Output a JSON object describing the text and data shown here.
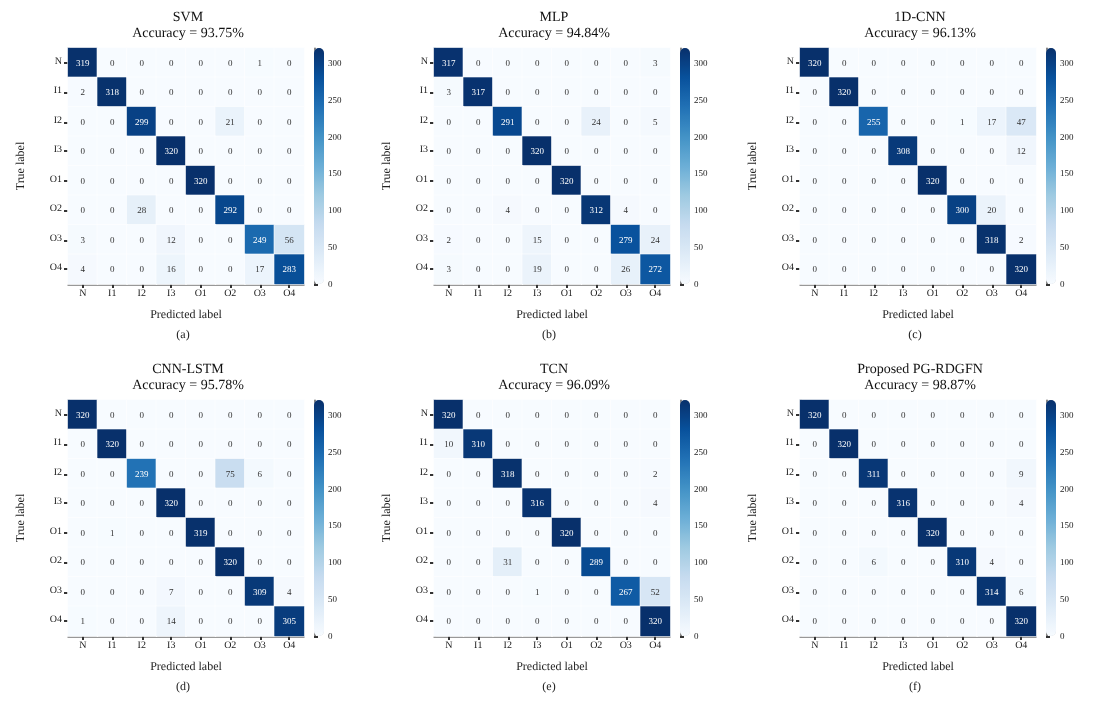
{
  "chart_data": [
    {
      "type": "heatmap",
      "title": "SVM",
      "subtitle": "Accuracy = 93.75%",
      "xlabel": "Predicted label",
      "ylabel": "True label",
      "annotations": [
        "(a)"
      ],
      "data_labels": true,
      "clim": [
        0,
        320
      ],
      "cticks": [
        0,
        50,
        100,
        150,
        200,
        250,
        300
      ],
      "categories": [
        "N",
        "I1",
        "I2",
        "I3",
        "O1",
        "O2",
        "O3",
        "O4"
      ],
      "y_categories": [
        "N",
        "I1",
        "I2",
        "I3",
        "O1",
        "O2",
        "O3",
        "O4"
      ],
      "cells": [
        [
          319,
          0,
          0,
          0,
          0,
          0,
          1,
          0
        ],
        [
          2,
          318,
          0,
          0,
          0,
          0,
          0,
          0
        ],
        [
          0,
          0,
          299,
          0,
          0,
          21,
          0,
          0
        ],
        [
          0,
          0,
          0,
          320,
          0,
          0,
          0,
          0
        ],
        [
          0,
          0,
          0,
          0,
          320,
          0,
          0,
          0
        ],
        [
          0,
          0,
          28,
          0,
          0,
          292,
          0,
          0
        ],
        [
          3,
          0,
          0,
          12,
          0,
          0,
          249,
          56
        ],
        [
          4,
          0,
          0,
          16,
          0,
          0,
          17,
          283
        ]
      ]
    },
    {
      "type": "heatmap",
      "title": "MLP",
      "subtitle": "Accuracy = 94.84%",
      "xlabel": "Predicted label",
      "ylabel": "True label",
      "annotations": [
        "(b)"
      ],
      "data_labels": true,
      "clim": [
        0,
        320
      ],
      "cticks": [
        0,
        50,
        100,
        150,
        200,
        250,
        300
      ],
      "categories": [
        "N",
        "I1",
        "I2",
        "I3",
        "O1",
        "O2",
        "O3",
        "O4"
      ],
      "y_categories": [
        "N",
        "I1",
        "I2",
        "I3",
        "O1",
        "O2",
        "O3",
        "O4"
      ],
      "cells": [
        [
          317,
          0,
          0,
          0,
          0,
          0,
          0,
          3
        ],
        [
          3,
          317,
          0,
          0,
          0,
          0,
          0,
          0
        ],
        [
          0,
          0,
          291,
          0,
          0,
          24,
          0,
          5
        ],
        [
          0,
          0,
          0,
          320,
          0,
          0,
          0,
          0
        ],
        [
          0,
          0,
          0,
          0,
          320,
          0,
          0,
          0
        ],
        [
          0,
          0,
          4,
          0,
          0,
          312,
          4,
          0
        ],
        [
          2,
          0,
          0,
          15,
          0,
          0,
          279,
          24
        ],
        [
          3,
          0,
          0,
          19,
          0,
          0,
          26,
          272
        ]
      ]
    },
    {
      "type": "heatmap",
      "title": "1D-CNN",
      "subtitle": "Accuracy = 96.13%",
      "xlabel": "Predicted label",
      "ylabel": "True label",
      "annotations": [
        "(c)"
      ],
      "data_labels": true,
      "clim": [
        0,
        320
      ],
      "cticks": [
        0,
        50,
        100,
        150,
        200,
        250,
        300
      ],
      "categories": [
        "N",
        "I1",
        "I2",
        "I3",
        "O1",
        "O2",
        "O3",
        "O4"
      ],
      "y_categories": [
        "N",
        "I1",
        "I2",
        "I3",
        "O1",
        "O2",
        "O3",
        "O4"
      ],
      "cells": [
        [
          320,
          0,
          0,
          0,
          0,
          0,
          0,
          0
        ],
        [
          0,
          320,
          0,
          0,
          0,
          0,
          0,
          0
        ],
        [
          0,
          0,
          255,
          0,
          0,
          1,
          17,
          47
        ],
        [
          0,
          0,
          0,
          308,
          0,
          0,
          0,
          12
        ],
        [
          0,
          0,
          0,
          0,
          320,
          0,
          0,
          0
        ],
        [
          0,
          0,
          0,
          0,
          0,
          300,
          20,
          0
        ],
        [
          0,
          0,
          0,
          0,
          0,
          0,
          318,
          2
        ],
        [
          0,
          0,
          0,
          0,
          0,
          0,
          0,
          320
        ]
      ]
    },
    {
      "type": "heatmap",
      "title": "CNN-LSTM",
      "subtitle": "Accuracy = 95.78%",
      "xlabel": "Predicted label",
      "ylabel": "True label",
      "annotations": [
        "(d)"
      ],
      "data_labels": true,
      "clim": [
        0,
        320
      ],
      "cticks": [
        0,
        50,
        100,
        150,
        200,
        250,
        300
      ],
      "categories": [
        "N",
        "I1",
        "I2",
        "I3",
        "O1",
        "O2",
        "O3",
        "O4"
      ],
      "y_categories": [
        "N",
        "I1",
        "I2",
        "I3",
        "O1",
        "O2",
        "O3",
        "O4"
      ],
      "cells": [
        [
          320,
          0,
          0,
          0,
          0,
          0,
          0,
          0
        ],
        [
          0,
          320,
          0,
          0,
          0,
          0,
          0,
          0
        ],
        [
          0,
          0,
          239,
          0,
          0,
          75,
          6,
          0
        ],
        [
          0,
          0,
          0,
          320,
          0,
          0,
          0,
          0
        ],
        [
          0,
          1,
          0,
          0,
          319,
          0,
          0,
          0
        ],
        [
          0,
          0,
          0,
          0,
          0,
          320,
          0,
          0
        ],
        [
          0,
          0,
          0,
          7,
          0,
          0,
          309,
          4
        ],
        [
          1,
          0,
          0,
          14,
          0,
          0,
          0,
          305
        ]
      ]
    },
    {
      "type": "heatmap",
      "title": "TCN",
      "subtitle": "Accuracy = 96.09%",
      "xlabel": "Predicted label",
      "ylabel": "True label",
      "annotations": [
        "(e)"
      ],
      "data_labels": true,
      "clim": [
        0,
        320
      ],
      "cticks": [
        0,
        50,
        100,
        150,
        200,
        250,
        300
      ],
      "categories": [
        "N",
        "I1",
        "I2",
        "I3",
        "O1",
        "O2",
        "O3",
        "O4"
      ],
      "y_categories": [
        "N",
        "I1",
        "I2",
        "I3",
        "O1",
        "O2",
        "O3",
        "O4"
      ],
      "cells": [
        [
          320,
          0,
          0,
          0,
          0,
          0,
          0,
          0
        ],
        [
          10,
          310,
          0,
          0,
          0,
          0,
          0,
          0
        ],
        [
          0,
          0,
          318,
          0,
          0,
          0,
          0,
          2
        ],
        [
          0,
          0,
          0,
          316,
          0,
          0,
          0,
          4
        ],
        [
          0,
          0,
          0,
          0,
          320,
          0,
          0,
          0
        ],
        [
          0,
          0,
          31,
          0,
          0,
          289,
          0,
          0
        ],
        [
          0,
          0,
          0,
          1,
          0,
          0,
          267,
          52
        ],
        [
          0,
          0,
          0,
          0,
          0,
          0,
          0,
          320
        ]
      ]
    },
    {
      "type": "heatmap",
      "title": "Proposed PG-RDGFN",
      "subtitle": "Accuracy = 98.87%",
      "xlabel": "Predicted label",
      "ylabel": "True label",
      "annotations": [
        "(f)"
      ],
      "data_labels": true,
      "clim": [
        0,
        320
      ],
      "cticks": [
        0,
        50,
        100,
        150,
        200,
        250,
        300
      ],
      "categories": [
        "N",
        "I1",
        "I2",
        "I3",
        "O1",
        "O2",
        "O3",
        "O4"
      ],
      "y_categories": [
        "N",
        "I1",
        "I2",
        "I3",
        "O1",
        "O2",
        "O3",
        "O4"
      ],
      "cells": [
        [
          320,
          0,
          0,
          0,
          0,
          0,
          0,
          0
        ],
        [
          0,
          320,
          0,
          0,
          0,
          0,
          0,
          0
        ],
        [
          0,
          0,
          311,
          0,
          0,
          0,
          0,
          9
        ],
        [
          0,
          0,
          0,
          316,
          0,
          0,
          0,
          4
        ],
        [
          0,
          0,
          0,
          0,
          320,
          0,
          0,
          0
        ],
        [
          0,
          0,
          6,
          0,
          0,
          310,
          4,
          0
        ],
        [
          0,
          0,
          0,
          0,
          0,
          0,
          314,
          6
        ],
        [
          0,
          0,
          0,
          0,
          0,
          0,
          0,
          320
        ]
      ]
    }
  ]
}
